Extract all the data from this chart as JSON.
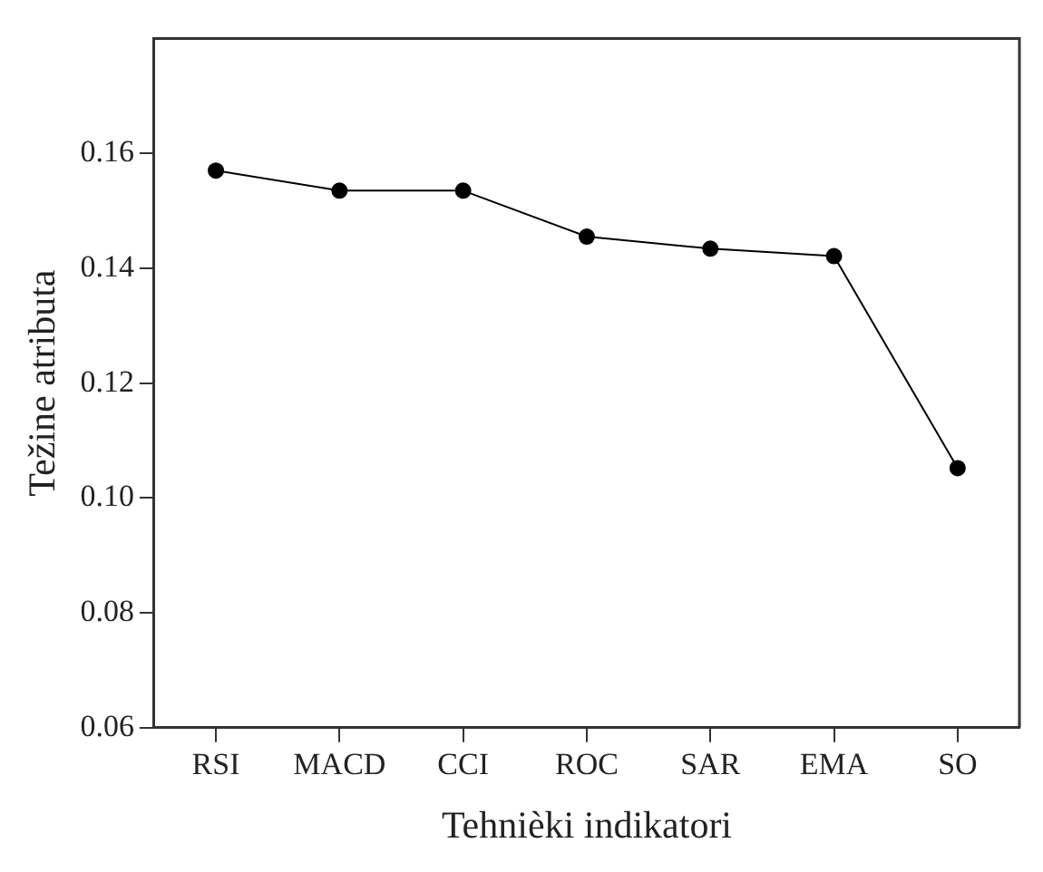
{
  "chart_data": {
    "type": "line",
    "xlabel": "Tehnièki indikatori",
    "ylabel": "Težine atributa",
    "categories": [
      "RSI",
      "MACD",
      "CCI",
      "ROC",
      "SAR",
      "EMA",
      "SO"
    ],
    "series": [
      {
        "color": "#000000",
        "values": [
          0.157,
          0.1535,
          0.1535,
          0.1455,
          0.1434,
          0.1421,
          0.1052
        ]
      }
    ],
    "ylim": [
      0.06,
      0.18
    ],
    "yticks": [
      0.06,
      0.08,
      {
        "value": 0.1,
        "label": "0.10"
      },
      0.12,
      0.14,
      0.16
    ],
    "grid": false,
    "legend": false,
    "marker": "circle",
    "line_style": "solid"
  }
}
